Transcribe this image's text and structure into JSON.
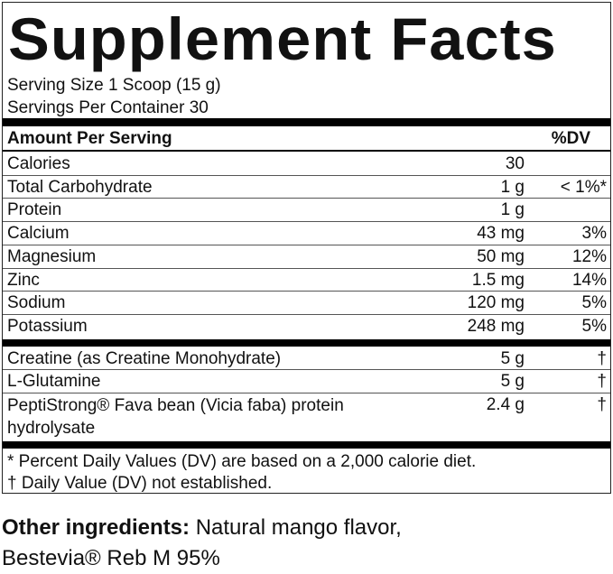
{
  "panel": {
    "title": "Supplement Facts",
    "serving_size": "Serving Size 1 Scoop (15 g)",
    "servings_per_container": "Servings Per Container 30",
    "header": {
      "amount": "Amount Per Serving",
      "dv": "%DV"
    },
    "section1": [
      {
        "name": "Calories",
        "amount": "30"
      },
      {
        "name": "Total Carbohydrate",
        "amount": "1 g",
        "dv": "< 1%*"
      },
      {
        "name": "Protein",
        "amount": "1 g"
      },
      {
        "name": "Calcium",
        "amount": "43 mg",
        "dv": "3%"
      },
      {
        "name": "Magnesium",
        "amount": "50 mg",
        "dv": "12%"
      },
      {
        "name": "Zinc",
        "amount": "1.5 mg",
        "dv": "14%"
      },
      {
        "name": "Sodium",
        "amount": "120 mg",
        "dv": "5%"
      },
      {
        "name": "Potassium",
        "amount": "248 mg",
        "dv": "5%"
      }
    ],
    "section2": [
      {
        "name": "Creatine (as Creatine Monohydrate)",
        "amount": "5 g",
        "dv": "†"
      },
      {
        "name": "L-Glutamine",
        "amount": "5 g",
        "dv": "†"
      },
      {
        "name": "PeptiStrong® Fava bean (Vicia faba) protein hydrolysate",
        "amount": "2.4 g",
        "dv": "†"
      }
    ],
    "footnotes": [
      "* Percent Daily Values (DV) are based on a 2,000 calorie diet.",
      "† Daily Value (DV) not established."
    ]
  },
  "other_ingredients": {
    "label": "Other ingredients:",
    "text": "Natural mango flavor, Bestevia® Reb M 95%"
  }
}
